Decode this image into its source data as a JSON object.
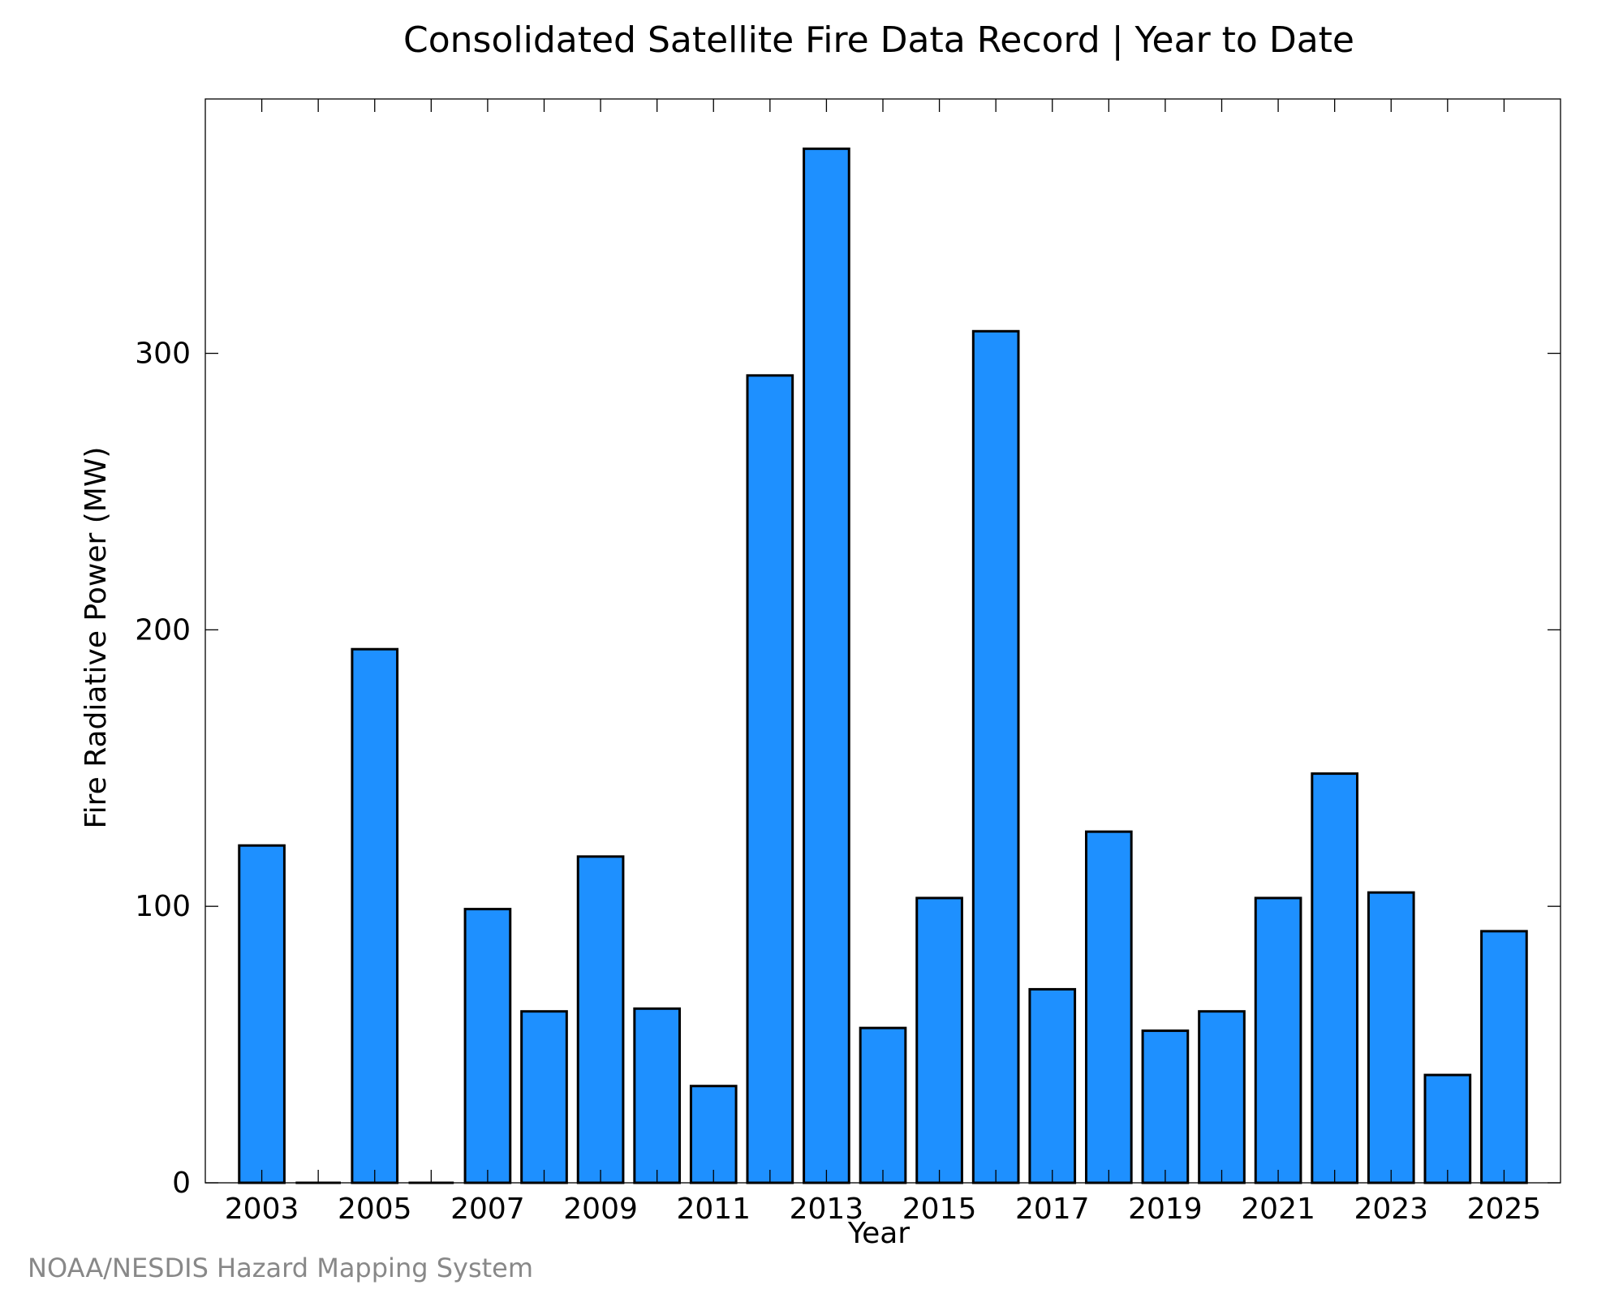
{
  "chart_data": {
    "type": "bar",
    "title": "Consolidated Satellite Fire Data Record | Year to Date",
    "xlabel": "Year",
    "ylabel": "Fire Radiative Power (MW)",
    "categories": [
      "2003",
      "2004",
      "2005",
      "2006",
      "2007",
      "2008",
      "2009",
      "2010",
      "2011",
      "2012",
      "2013",
      "2014",
      "2015",
      "2016",
      "2017",
      "2018",
      "2019",
      "2020",
      "2021",
      "2022",
      "2023",
      "2024",
      "2025"
    ],
    "x_tick_labels": [
      "2003",
      "2005",
      "2007",
      "2009",
      "2011",
      "2013",
      "2015",
      "2017",
      "2019",
      "2021",
      "2023",
      "2025"
    ],
    "values": [
      122,
      0,
      193,
      0,
      99,
      62,
      118,
      63,
      35,
      292,
      374,
      56,
      103,
      308,
      70,
      127,
      55,
      62,
      103,
      148,
      105,
      39,
      91
    ],
    "ylim": [
      0,
      392
    ],
    "y_ticks": [
      0,
      100,
      200,
      300
    ],
    "grid": false,
    "bar_color": "#1E90FF",
    "bar_edge_color": "#000000"
  },
  "credit": "NOAA/NESDIS Hazard Mapping System"
}
